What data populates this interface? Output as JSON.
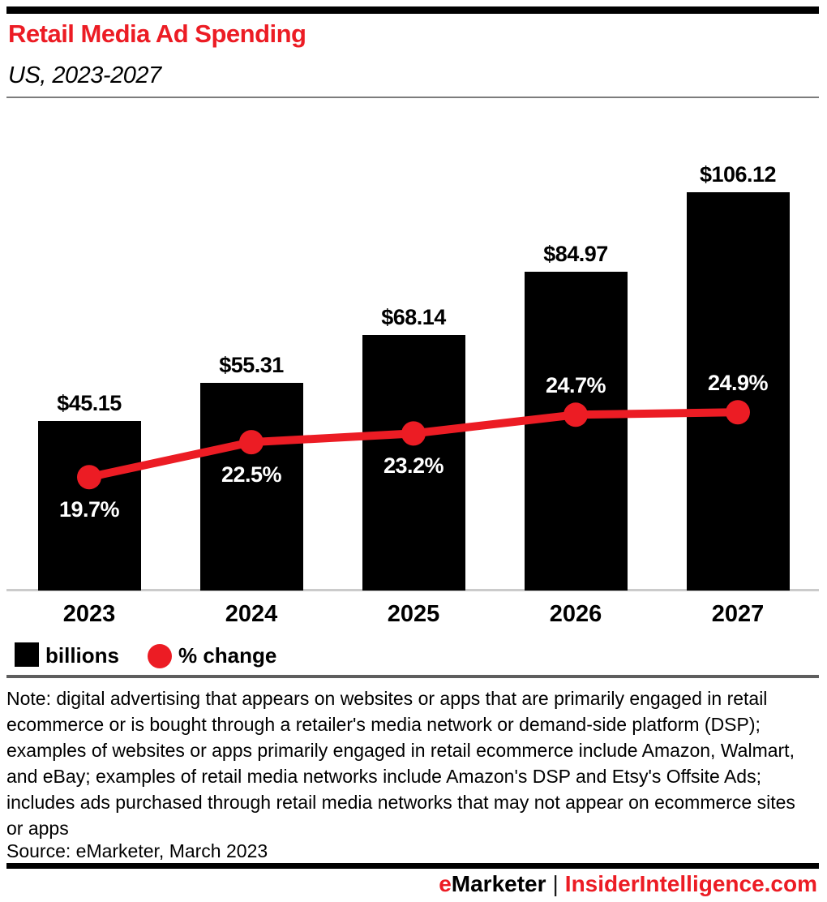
{
  "header": {
    "title": "Retail Media Ad Spending",
    "subtitle": "US, 2023-2027"
  },
  "legend": {
    "bar_label": "billions",
    "line_label": "% change"
  },
  "note": "Note: digital advertising that appears on websites or apps that are primarily engaged in retail ecommerce or is bought through a retailer's media network or demand-side platform (DSP); examples of websites or apps primarily engaged in retail ecommerce include Amazon, Walmart, and eBay; examples of retail media networks include Amazon's DSP and Etsy's Offsite Ads; includes ads purchased through retail media networks that may not appear on ecommerce sites or apps",
  "source": "Source: eMarketer, March 2023",
  "footer": {
    "brand_prefix": "e",
    "brand_rest": "Marketer",
    "separator": "|",
    "site": "InsiderIntelligence.com"
  },
  "colors": {
    "accent_red": "#EC1C24",
    "bar_black": "#000000",
    "baseline_gray": "#cbcbcb"
  },
  "chart_data": {
    "type": "bar",
    "subtype": "bar-line-combo",
    "title": "Retail Media Ad Spending",
    "subtitle": "US, 2023-2027",
    "categories": [
      "2023",
      "2024",
      "2025",
      "2026",
      "2027"
    ],
    "series": [
      {
        "name": "billions",
        "type": "bar",
        "unit": "US$ billions",
        "values": [
          45.15,
          55.31,
          68.14,
          84.97,
          106.12
        ],
        "labels": [
          "$45.15",
          "$55.31",
          "$68.14",
          "$84.97",
          "$106.12"
        ]
      },
      {
        "name": "% change",
        "type": "line",
        "unit": "percent",
        "values": [
          19.7,
          22.5,
          23.2,
          24.7,
          24.9
        ],
        "labels": [
          "19.7%",
          "22.5%",
          "23.2%",
          "24.7%",
          "24.9%"
        ],
        "label_side": [
          "below",
          "below",
          "below",
          "above",
          "above"
        ]
      }
    ],
    "bar_color": "#000000",
    "line_color": "#EC1C24",
    "grid": false,
    "legend_position": "bottom",
    "value_axis_visible": false
  }
}
